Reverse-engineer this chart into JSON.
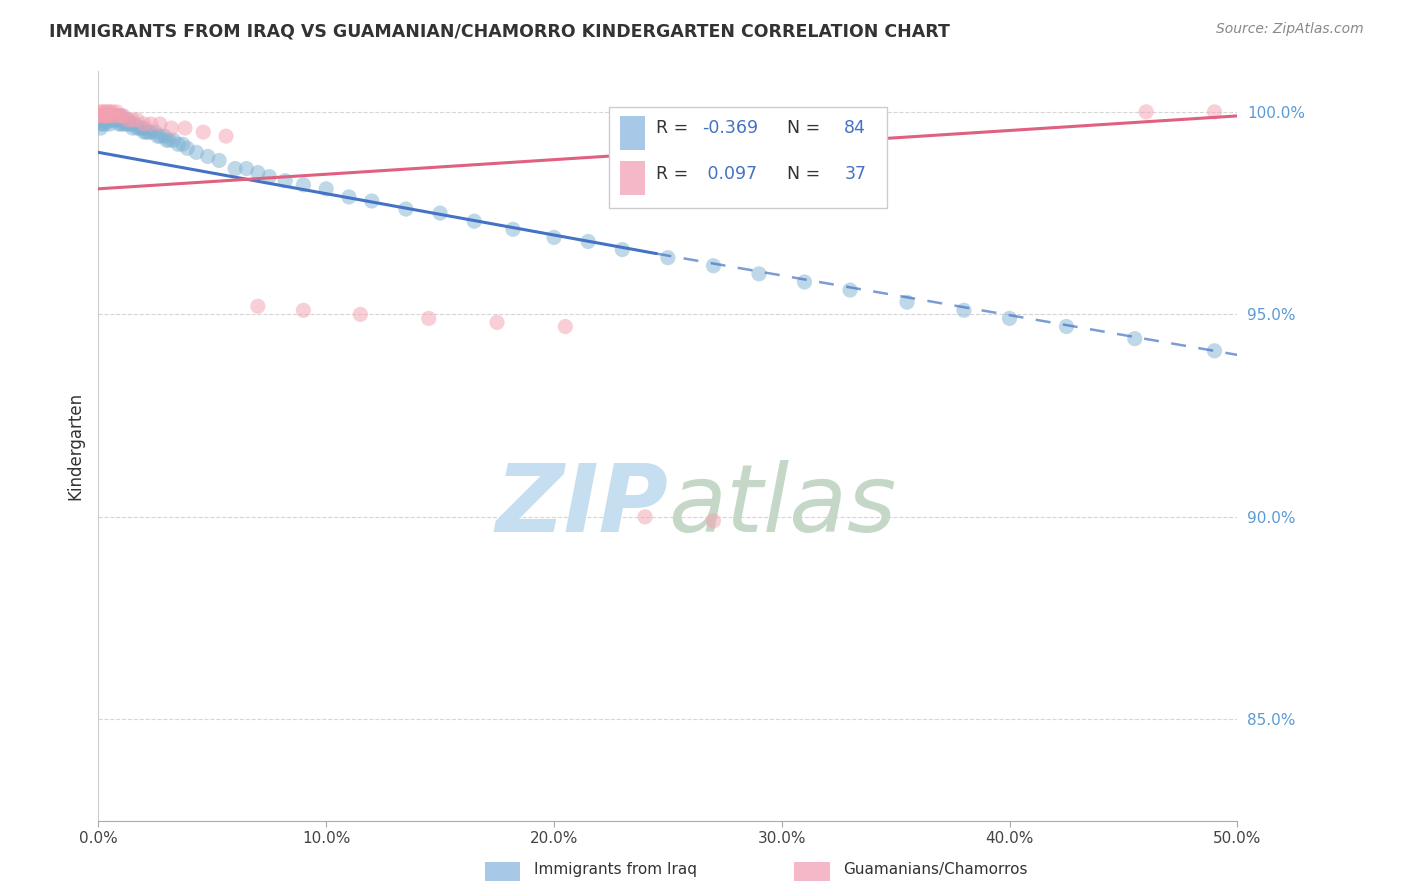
{
  "title": "IMMIGRANTS FROM IRAQ VS GUAMANIAN/CHAMORRO KINDERGARTEN CORRELATION CHART",
  "source": "Source: ZipAtlas.com",
  "ylabel": "Kindergarten",
  "xlim": [
    0.0,
    0.5
  ],
  "ylim": [
    0.825,
    1.01
  ],
  "xtick_labels": [
    "0.0%",
    "",
    "",
    "",
    "",
    "10.0%",
    "",
    "",
    "",
    "",
    "20.0%",
    "",
    "",
    "",
    "",
    "30.0%",
    "",
    "",
    "",
    "",
    "40.0%",
    "",
    "",
    "",
    "",
    "50.0%"
  ],
  "xtick_vals": [
    0.0,
    0.02,
    0.04,
    0.06,
    0.08,
    0.1,
    0.12,
    0.14,
    0.16,
    0.18,
    0.2,
    0.22,
    0.24,
    0.26,
    0.28,
    0.3,
    0.32,
    0.34,
    0.36,
    0.38,
    0.4,
    0.42,
    0.44,
    0.46,
    0.48,
    0.5
  ],
  "ytick_labels": [
    "85.0%",
    "90.0%",
    "95.0%",
    "100.0%"
  ],
  "ytick_vals": [
    0.85,
    0.9,
    0.95,
    1.0
  ],
  "blue_scatter_x": [
    0.0,
    0.001,
    0.001,
    0.001,
    0.002,
    0.002,
    0.002,
    0.003,
    0.003,
    0.003,
    0.004,
    0.004,
    0.005,
    0.005,
    0.005,
    0.006,
    0.006,
    0.007,
    0.007,
    0.008,
    0.008,
    0.009,
    0.009,
    0.01,
    0.01,
    0.01,
    0.011,
    0.011,
    0.012,
    0.012,
    0.013,
    0.013,
    0.014,
    0.015,
    0.015,
    0.016,
    0.017,
    0.018,
    0.019,
    0.02,
    0.02,
    0.021,
    0.022,
    0.023,
    0.025,
    0.026,
    0.027,
    0.029,
    0.03,
    0.031,
    0.033,
    0.035,
    0.037,
    0.039,
    0.043,
    0.048,
    0.053,
    0.06,
    0.065,
    0.07,
    0.075,
    0.082,
    0.09,
    0.1,
    0.11,
    0.12,
    0.135,
    0.15,
    0.165,
    0.182,
    0.2,
    0.215,
    0.23,
    0.25,
    0.27,
    0.29,
    0.31,
    0.33,
    0.355,
    0.38,
    0.4,
    0.425,
    0.455,
    0.49
  ],
  "blue_scatter_y": [
    0.998,
    0.999,
    0.997,
    0.996,
    0.999,
    0.998,
    0.997,
    0.999,
    0.998,
    0.997,
    0.999,
    0.998,
    0.999,
    0.998,
    0.997,
    0.999,
    0.998,
    0.999,
    0.998,
    0.999,
    0.998,
    0.999,
    0.997,
    0.999,
    0.998,
    0.997,
    0.998,
    0.997,
    0.998,
    0.997,
    0.998,
    0.997,
    0.997,
    0.997,
    0.996,
    0.997,
    0.996,
    0.996,
    0.996,
    0.996,
    0.995,
    0.995,
    0.995,
    0.995,
    0.995,
    0.994,
    0.994,
    0.994,
    0.993,
    0.993,
    0.993,
    0.992,
    0.992,
    0.991,
    0.99,
    0.989,
    0.988,
    0.986,
    0.986,
    0.985,
    0.984,
    0.983,
    0.982,
    0.981,
    0.979,
    0.978,
    0.976,
    0.975,
    0.973,
    0.971,
    0.969,
    0.968,
    0.966,
    0.964,
    0.962,
    0.96,
    0.958,
    0.956,
    0.953,
    0.951,
    0.949,
    0.947,
    0.944,
    0.941
  ],
  "pink_scatter_x": [
    0.0,
    0.001,
    0.001,
    0.002,
    0.002,
    0.003,
    0.003,
    0.004,
    0.004,
    0.005,
    0.005,
    0.006,
    0.007,
    0.008,
    0.009,
    0.01,
    0.011,
    0.013,
    0.015,
    0.017,
    0.02,
    0.023,
    0.027,
    0.032,
    0.038,
    0.046,
    0.056,
    0.07,
    0.09,
    0.115,
    0.145,
    0.175,
    0.205,
    0.24,
    0.27,
    0.46,
    0.49
  ],
  "pink_scatter_y": [
    0.999,
    1.0,
    0.999,
    1.0,
    0.999,
    1.0,
    0.999,
    1.0,
    0.999,
    1.0,
    0.999,
    1.0,
    0.999,
    1.0,
    0.999,
    0.999,
    0.999,
    0.998,
    0.998,
    0.998,
    0.997,
    0.997,
    0.997,
    0.996,
    0.996,
    0.995,
    0.994,
    0.952,
    0.951,
    0.95,
    0.949,
    0.948,
    0.947,
    0.9,
    0.899,
    1.0,
    1.0
  ],
  "blue_solid_line_x": [
    0.0,
    0.245
  ],
  "blue_solid_line_y": [
    0.99,
    0.965
  ],
  "blue_dashed_line_x": [
    0.245,
    0.5
  ],
  "blue_dashed_line_y": [
    0.965,
    0.94
  ],
  "pink_line_x": [
    0.0,
    0.5
  ],
  "pink_line_y": [
    0.981,
    0.999
  ],
  "blue_scatter_color": "#7fb3d3",
  "pink_scatter_color": "#f4a0b0",
  "blue_line_color": "#4472c4",
  "pink_line_color": "#e06080",
  "watermark_zip_color": "#c5dff0",
  "watermark_atlas_color": "#c5d8c8",
  "grid_color": "#cccccc",
  "background_color": "#ffffff",
  "legend_box_blue": "#a8c8e8",
  "legend_box_pink": "#f4b8c8",
  "r_blue": -0.369,
  "n_blue": 84,
  "r_pink": 0.097,
  "n_pink": 37,
  "ytick_color": "#5b9bd5",
  "scatter_size": 120,
  "scatter_alpha": 0.5
}
